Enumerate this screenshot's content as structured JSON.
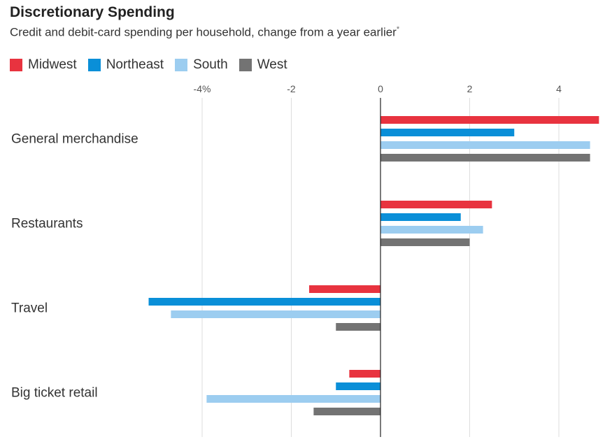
{
  "header": {
    "title": "Discretionary Spending",
    "subtitle": "Credit and debit-card spending per household, change from a year earlier",
    "footnote_mark": "*"
  },
  "chart_data": {
    "type": "bar",
    "orientation": "horizontal",
    "title": "Discretionary Spending",
    "subtitle": "Credit and debit-card spending per household, change from a year earlier",
    "categories": [
      "General merchandise",
      "Restaurants",
      "Travel",
      "Big ticket retail"
    ],
    "series": [
      {
        "name": "Midwest",
        "color": "#e8333f",
        "values": [
          4.9,
          2.5,
          -1.6,
          -0.7
        ]
      },
      {
        "name": "Northeast",
        "color": "#0a8fd8",
        "values": [
          3.0,
          1.8,
          -5.2,
          -1.0
        ]
      },
      {
        "name": "South",
        "color": "#9ccdf0",
        "values": [
          4.7,
          2.3,
          -4.7,
          -3.9
        ]
      },
      {
        "name": "West",
        "color": "#737373",
        "values": [
          4.7,
          2.0,
          -1.0,
          -1.5
        ]
      }
    ],
    "x_ticks": [
      {
        "value": -4,
        "label": "-4%"
      },
      {
        "value": -2,
        "label": "-2"
      },
      {
        "value": 0,
        "label": "0"
      },
      {
        "value": 2,
        "label": "2"
      },
      {
        "value": 4,
        "label": "4"
      }
    ],
    "xlim": [
      -5.2,
      4.9
    ],
    "grid": true,
    "legend_position": "top-left",
    "xlabel": "",
    "ylabel": ""
  }
}
